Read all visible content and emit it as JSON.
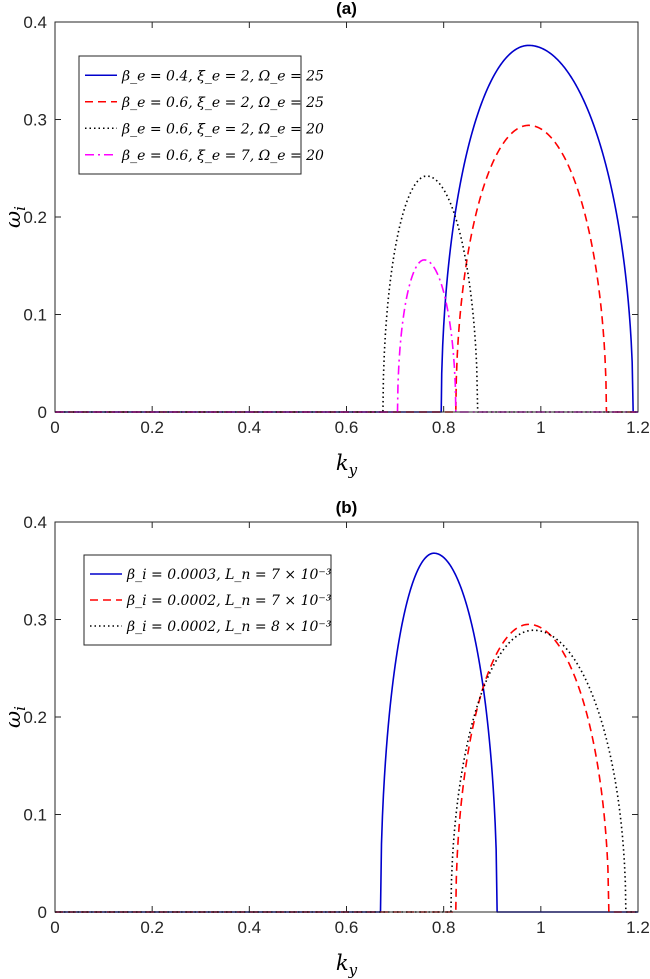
{
  "chart_data": [
    {
      "type": "line",
      "title": "(a)",
      "xlabel": "k_y",
      "ylabel": "ω_i",
      "xlim": [
        0,
        1.2
      ],
      "ylim": [
        0,
        0.4
      ],
      "xticks": [
        "0",
        "0.2",
        "0.4",
        "0.6",
        "0.8",
        "1",
        "1.2"
      ],
      "yticks": [
        "0",
        "0.1",
        "0.2",
        "0.3",
        "0.4"
      ],
      "grid": false,
      "legend_position": "top-left",
      "series": [
        {
          "name": "β_e = 0.4, ξ_e = 2, Ω_e = 25",
          "color": "#0000cc",
          "dash": "solid",
          "k_start": 0.795,
          "k_end": 1.19,
          "peak_k": 0.975,
          "peak": 0.376
        },
        {
          "name": "β_e = 0.6, ξ_e = 2, Ω_e = 25",
          "color": "#ff0000",
          "dash": "dashed",
          "k_start": 0.825,
          "k_end": 1.135,
          "peak_k": 0.975,
          "peak": 0.294
        },
        {
          "name": "β_e = 0.6, ξ_e = 2, Ω_e = 20",
          "color": "#000000",
          "dash": "dotted",
          "k_start": 0.675,
          "k_end": 0.87,
          "peak_k": 0.765,
          "peak": 0.242
        },
        {
          "name": "β_e = 0.6, ξ_e = 7, Ω_e = 20",
          "color": "#ff00ff",
          "dash": "dashdot",
          "k_start": 0.705,
          "k_end": 0.825,
          "peak_k": 0.76,
          "peak": 0.156
        }
      ]
    },
    {
      "type": "line",
      "title": "(b)",
      "xlabel": "k_y",
      "ylabel": "ω_i",
      "xlim": [
        0,
        1.2
      ],
      "ylim": [
        0,
        0.4
      ],
      "xticks": [
        "0",
        "0.2",
        "0.4",
        "0.6",
        "0.8",
        "1",
        "1.2"
      ],
      "yticks": [
        "0",
        "0.1",
        "0.2",
        "0.3",
        "0.4"
      ],
      "grid": false,
      "legend_position": "top-left",
      "series": [
        {
          "name": "β_i = 0.0003, L_n = 7 × 10⁻³",
          "color": "#0000cc",
          "dash": "solid",
          "k_start": 0.67,
          "k_end": 0.91,
          "peak_k": 0.78,
          "peak": 0.368
        },
        {
          "name": "β_i = 0.0002, L_n = 7 × 10⁻³",
          "color": "#ff0000",
          "dash": "dashed",
          "k_start": 0.825,
          "k_end": 1.14,
          "peak_k": 0.975,
          "peak": 0.295
        },
        {
          "name": "β_i = 0.0002, L_n = 8 × 10⁻³",
          "color": "#000000",
          "dash": "dotted",
          "k_start": 0.815,
          "k_end": 1.175,
          "peak_k": 0.985,
          "peak": 0.289
        }
      ]
    }
  ]
}
